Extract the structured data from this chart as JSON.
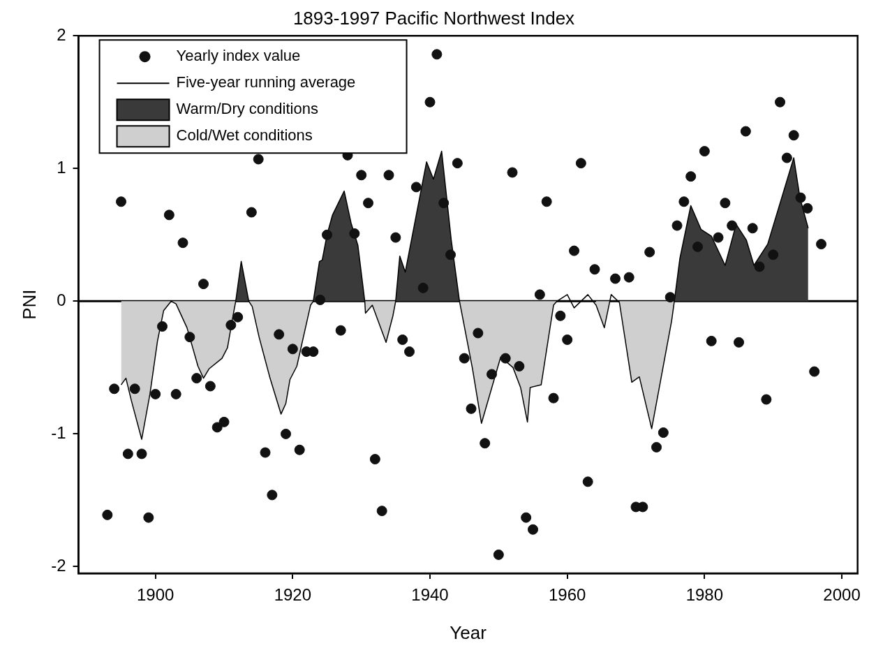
{
  "chart_data": {
    "type": "scatter",
    "title": "1893-1997 Pacific Northwest Index",
    "xlabel": "Year",
    "ylabel": "PNI",
    "xlim": [
      1888.8,
      2002.3
    ],
    "xticks": [
      1900,
      1920,
      1940,
      1960,
      1980,
      2000
    ],
    "ylim": [
      -2.05,
      2
    ],
    "yticks": [
      -2,
      -1,
      0,
      1,
      2
    ],
    "grid": false,
    "legend": "top left",
    "ref_lines": [
      {
        "axis": "y",
        "value": 0,
        "color": "#000000"
      }
    ],
    "series": [
      {
        "name": "Yearly index value",
        "marker": "circle",
        "color": "#111111",
        "x": [
          1893,
          1894,
          1895,
          1896,
          1897,
          1898,
          1899,
          1900,
          1901,
          1902,
          1903,
          1904,
          1905,
          1906,
          1907,
          1908,
          1909,
          1910,
          1911,
          1912,
          1914,
          1915,
          1916,
          1917,
          1918,
          1919,
          1920,
          1921,
          1922,
          1923,
          1924,
          1925,
          1927,
          1928,
          1929,
          1930,
          1931,
          1932,
          1933,
          1934,
          1935,
          1936,
          1937,
          1938,
          1939,
          1940,
          1941,
          1942,
          1943,
          1944,
          1945,
          1946,
          1947,
          1948,
          1949,
          1950,
          1951,
          1952,
          1953,
          1954,
          1955,
          1956,
          1957,
          1958,
          1959,
          1960,
          1961,
          1962,
          1963,
          1964,
          1967,
          1969,
          1970,
          1971,
          1972,
          1973,
          1974,
          1975,
          1976,
          1977,
          1978,
          1979,
          1980,
          1981,
          1982,
          1983,
          1984,
          1985,
          1986,
          1987,
          1988,
          1989,
          1990,
          1991,
          1992,
          1993,
          1994,
          1995,
          1996,
          1997
        ],
        "values": [
          -1.61,
          -0.66,
          0.75,
          -1.15,
          -0.66,
          -1.15,
          -1.63,
          -0.7,
          -0.19,
          0.65,
          -0.7,
          0.44,
          -0.27,
          -0.58,
          0.13,
          -0.64,
          -0.95,
          -0.91,
          -0.18,
          -0.12,
          0.67,
          1.07,
          -1.14,
          -1.46,
          -0.25,
          -1.0,
          -0.36,
          -1.12,
          -0.38,
          -0.38,
          0.01,
          0.5,
          -0.22,
          1.1,
          0.51,
          0.95,
          0.74,
          -1.19,
          -1.58,
          0.95,
          0.48,
          -0.29,
          -0.38,
          0.86,
          0.1,
          1.5,
          1.86,
          0.74,
          0.35,
          1.04,
          -0.43,
          -0.81,
          -0.24,
          -1.07,
          -0.55,
          -1.91,
          -0.43,
          0.97,
          -0.49,
          -1.63,
          -1.72,
          0.05,
          0.75,
          -0.73,
          -0.11,
          -0.29,
          0.38,
          1.04,
          -1.36,
          0.24,
          0.17,
          0.18,
          -1.55,
          -1.55,
          0.37,
          -1.1,
          -0.99,
          0.03,
          0.57,
          0.75,
          0.94,
          0.41,
          1.13,
          -0.3,
          0.48,
          0.74,
          0.57,
          -0.31,
          1.28,
          0.55,
          0.26,
          -0.74,
          0.35,
          1.5,
          1.08,
          1.25,
          0.78,
          0.7,
          -0.53,
          0.43
        ]
      },
      {
        "name": "Five-year running average",
        "type": "line",
        "marker": "none",
        "line_style": "solid",
        "color": "#000000",
        "x": [
          1895.0,
          1895.7,
          1896.5,
          1898.0,
          1899.2,
          1900.3,
          1901.2,
          1902.3,
          1903.0,
          1904.6,
          1906.2,
          1907.0,
          1907.8,
          1909.7,
          1910.5,
          1911.3,
          1911.7,
          1912.5,
          1913.6,
          1914.1,
          1915.1,
          1916.7,
          1918.3,
          1919.0,
          1919.6,
          1920.6,
          1922.6,
          1923.0,
          1923.9,
          1924.3,
          1925.0,
          1925.8,
          1927.5,
          1928.5,
          1929.5,
          1930.5,
          1930.6,
          1931.6,
          1933.6,
          1934.6,
          1935.0,
          1935.6,
          1936.4,
          1939.5,
          1940.5,
          1941.7,
          1943.1,
          1944.3,
          1946.2,
          1947.5,
          1950.3,
          1952.1,
          1953.2,
          1954.2,
          1954.6,
          1956.2,
          1958.0,
          1958.5,
          1960.0,
          1961.0,
          1963.0,
          1964.2,
          1965.4,
          1966.4,
          1967.6,
          1969.4,
          1970.5,
          1972.3,
          1975.2,
          1975.6,
          1976.4,
          1978.0,
          1979.5,
          1981.0,
          1983.0,
          1984.6,
          1986.1,
          1987.2,
          1989.2,
          1993.0,
          1993.9,
          1995.1
        ],
        "values": [
          -0.63,
          -0.58,
          -0.75,
          -1.04,
          -0.7,
          -0.3,
          -0.07,
          0,
          -0.02,
          -0.2,
          -0.49,
          -0.58,
          -0.51,
          -0.43,
          -0.35,
          -0.11,
          0,
          0.3,
          0,
          -0.04,
          -0.27,
          -0.58,
          -0.85,
          -0.77,
          -0.59,
          -0.49,
          -0.03,
          0,
          0.3,
          0.31,
          0.5,
          0.65,
          0.83,
          0.59,
          0.42,
          0,
          -0.09,
          -0.03,
          -0.31,
          -0.11,
          0,
          0.34,
          0.22,
          1.05,
          0.92,
          1.13,
          0.46,
          0,
          -0.51,
          -0.92,
          -0.42,
          -0.5,
          -0.65,
          -0.91,
          -0.65,
          -0.63,
          -0.03,
          0,
          0.05,
          -0.05,
          0.05,
          -0.03,
          -0.2,
          0.05,
          -0.01,
          -0.61,
          -0.57,
          -0.96,
          -0.15,
          0,
          0.32,
          0.72,
          0.54,
          0.49,
          0.27,
          0.58,
          0.46,
          0.27,
          0.43,
          1.08,
          0.78,
          0.55
        ]
      },
      {
        "name": "Warm/Dry conditions",
        "type": "area",
        "color": "#3a3a3a",
        "x": [
          1911.7,
          1912.5,
          1913.6
        ],
        "values": [
          0,
          0.3,
          0
        ]
      },
      {
        "name": "Cold/Wet conditions",
        "type": "area",
        "color": "#cfcfcf",
        "x": [
          1895.0,
          1895.7,
          1896.5,
          1898.0,
          1899.2,
          1900.3,
          1901.2,
          1902.3,
          1903.0,
          1904.6,
          1906.2,
          1907.0,
          1907.8,
          1909.7,
          1910.5,
          1911.3,
          1911.7
        ],
        "values": [
          -0.63,
          -0.58,
          -0.75,
          -1.04,
          -0.7,
          -0.3,
          -0.07,
          0,
          -0.02,
          -0.2,
          -0.49,
          -0.58,
          -0.51,
          -0.43,
          -0.35,
          -0.11,
          0
        ]
      },
      {
        "type": "area",
        "color": "#3a3a3a",
        "x": [
          1923.0,
          1923.9,
          1924.3,
          1925.0,
          1925.8,
          1927.5,
          1928.5,
          1929.5,
          1930.5
        ],
        "values": [
          0,
          0.3,
          0.31,
          0.5,
          0.65,
          0.83,
          0.59,
          0.42,
          0
        ]
      },
      {
        "type": "area",
        "color": "#3a3a3a",
        "x": [
          1935.0,
          1935.6,
          1936.4,
          1939.5,
          1940.5,
          1941.7,
          1943.1,
          1944.3
        ],
        "values": [
          0,
          0.34,
          0.22,
          1.05,
          0.92,
          1.13,
          0.46,
          0
        ]
      },
      {
        "type": "area",
        "color": "#3a3a3a",
        "x": [
          1975.6,
          1976.4,
          1978.0,
          1979.5,
          1981.0,
          1983.0,
          1984.6,
          1986.1,
          1987.2,
          1989.2,
          1993.0,
          1993.9,
          1995.1
        ],
        "values": [
          0,
          0.32,
          0.72,
          0.54,
          0.49,
          0.27,
          0.58,
          0.46,
          0.27,
          0.43,
          1.08,
          0.78,
          0.55
        ]
      },
      {
        "type": "area",
        "color": "#cfcfcf",
        "x": [
          1913.6,
          1914.1,
          1915.1,
          1916.7,
          1918.3,
          1919.0,
          1919.6,
          1920.6,
          1922.6,
          1923.0
        ],
        "values": [
          0,
          -0.04,
          -0.27,
          -0.58,
          -0.85,
          -0.77,
          -0.59,
          -0.49,
          -0.03,
          0
        ]
      },
      {
        "type": "area",
        "color": "#cfcfcf",
        "x": [
          1930.5,
          1930.6,
          1931.6,
          1933.6,
          1934.6,
          1935.0
        ],
        "values": [
          0,
          -0.09,
          -0.03,
          -0.31,
          -0.11,
          0
        ]
      },
      {
        "type": "area",
        "color": "#cfcfcf",
        "x": [
          1944.3,
          1946.2,
          1947.5,
          1950.3,
          1952.1,
          1953.2,
          1954.2,
          1954.6,
          1956.2,
          1958.0,
          1958.5
        ],
        "values": [
          0,
          -0.51,
          -0.92,
          -0.42,
          -0.5,
          -0.65,
          -0.91,
          -0.65,
          -0.63,
          -0.03,
          0
        ]
      },
      {
        "type": "area",
        "color": "#cfcfcf",
        "x": [
          1964.2,
          1965.4,
          1966.2
        ],
        "values": [
          -0.03,
          -0.2,
          0
        ]
      },
      {
        "type": "area",
        "color": "#cfcfcf",
        "x": [
          1967.6,
          1969.4,
          1970.5,
          1972.3,
          1975.2,
          1975.6
        ],
        "values": [
          -0.01,
          -0.61,
          -0.57,
          -0.96,
          -0.15,
          0
        ]
      }
    ]
  }
}
